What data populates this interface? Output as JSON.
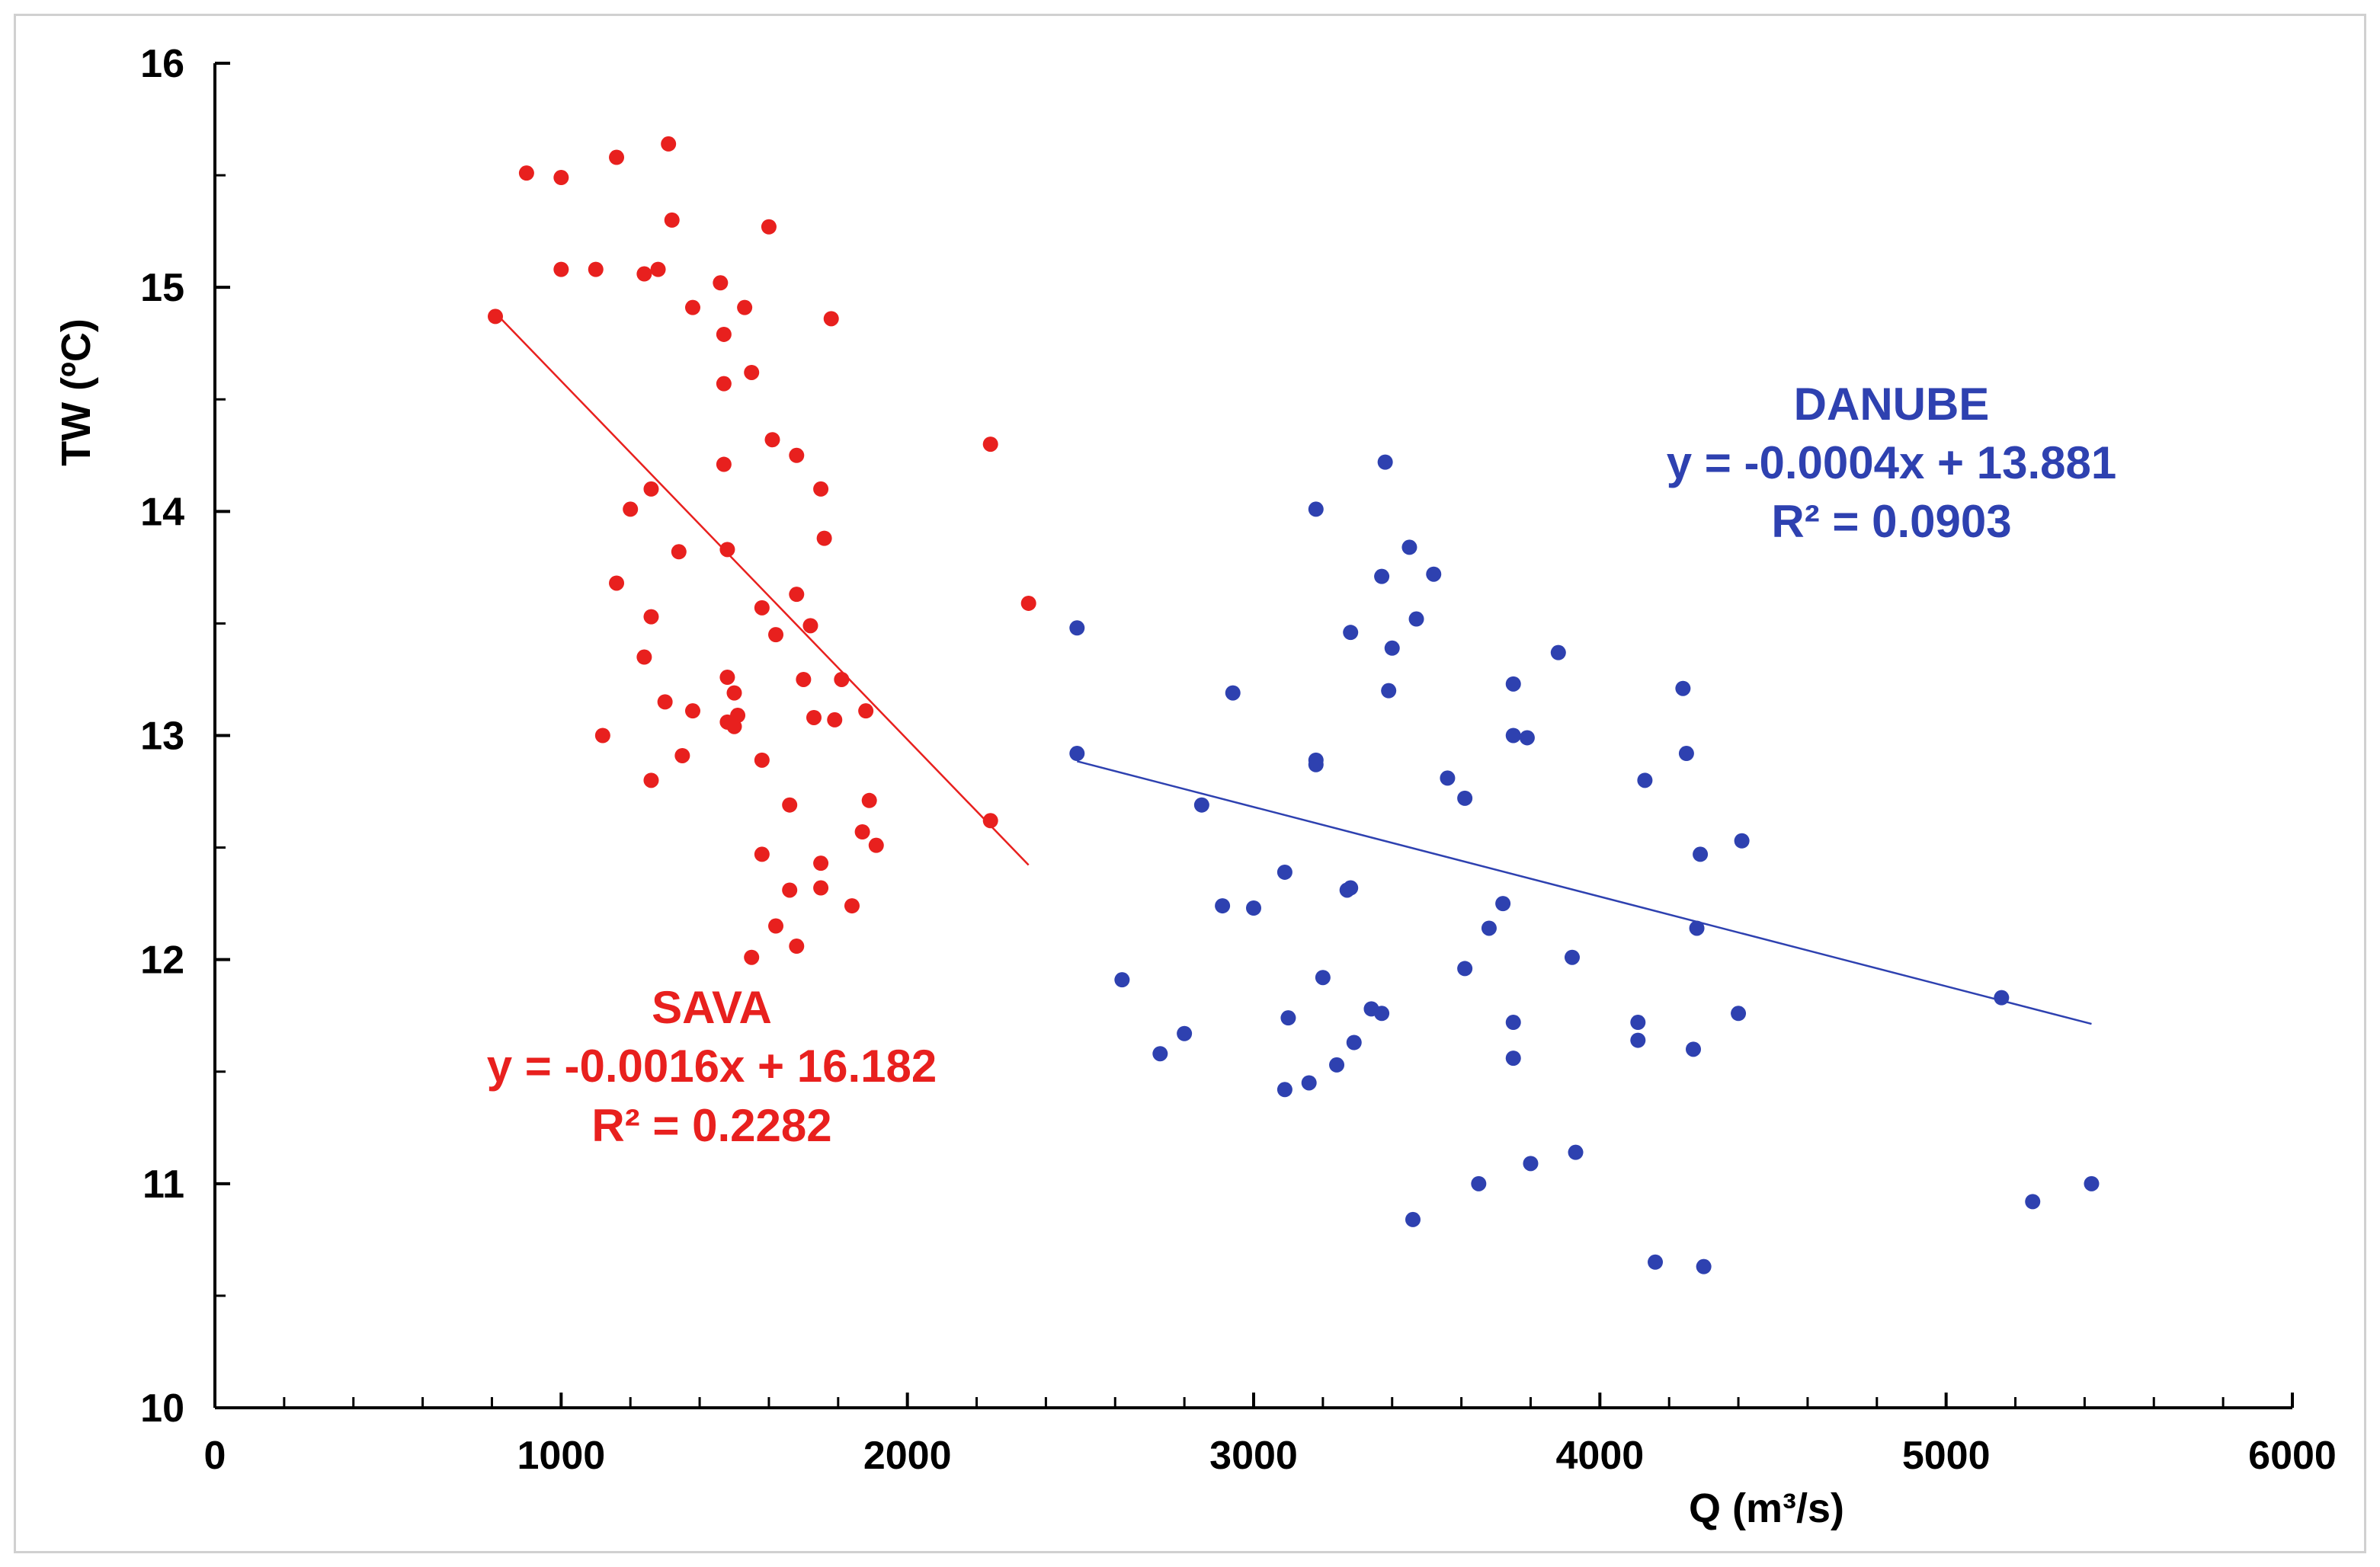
{
  "chart_data": {
    "type": "scatter",
    "xlabel": "Q (m³/s)",
    "ylabel": "TW (ºC)",
    "xlim": [
      0,
      6000
    ],
    "ylim": [
      10,
      16
    ],
    "x_major_ticks": [
      "0",
      "1000",
      "2000",
      "3000",
      "4000",
      "5000",
      "6000"
    ],
    "y_major_ticks": [
      "10",
      "11",
      "12",
      "13",
      "14",
      "15",
      "16"
    ],
    "grid": false,
    "series": [
      {
        "name": "SAVA",
        "color": "#e8201e",
        "annotation": {
          "name": "SAVA",
          "equation": "y = -0.0016x + 16.182",
          "r2": "R² = 0.2282"
        },
        "trendline": {
          "slope": -0.0016,
          "intercept": 16.182,
          "x_range": [
            810,
            2350
          ]
        },
        "points": [
          [
            810,
            14.87
          ],
          [
            900,
            15.51
          ],
          [
            1000,
            15.49
          ],
          [
            1000,
            15.08
          ],
          [
            1100,
            15.08
          ],
          [
            1160,
            15.58
          ],
          [
            1310,
            15.64
          ],
          [
            1320,
            15.3
          ],
          [
            1240,
            15.06
          ],
          [
            1280,
            15.08
          ],
          [
            1380,
            14.91
          ],
          [
            1460,
            15.02
          ],
          [
            1530,
            14.91
          ],
          [
            1600,
            15.27
          ],
          [
            1470,
            14.79
          ],
          [
            1550,
            14.62
          ],
          [
            1470,
            14.57
          ],
          [
            1780,
            14.86
          ],
          [
            1610,
            14.32
          ],
          [
            1680,
            14.25
          ],
          [
            2240,
            14.3
          ],
          [
            1470,
            14.21
          ],
          [
            1260,
            14.1
          ],
          [
            1750,
            14.1
          ],
          [
            1200,
            14.01
          ],
          [
            1340,
            13.82
          ],
          [
            1480,
            13.83
          ],
          [
            1760,
            13.88
          ],
          [
            1160,
            13.68
          ],
          [
            1680,
            13.63
          ],
          [
            1580,
            13.57
          ],
          [
            1260,
            13.53
          ],
          [
            2350,
            13.59
          ],
          [
            1620,
            13.45
          ],
          [
            1720,
            13.49
          ],
          [
            1240,
            13.35
          ],
          [
            1480,
            13.26
          ],
          [
            1700,
            13.25
          ],
          [
            1810,
            13.25
          ],
          [
            1500,
            13.19
          ],
          [
            1300,
            13.15
          ],
          [
            1380,
            13.11
          ],
          [
            1480,
            13.06
          ],
          [
            1510,
            13.09
          ],
          [
            1500,
            13.04
          ],
          [
            1730,
            13.08
          ],
          [
            1790,
            13.07
          ],
          [
            1880,
            13.11
          ],
          [
            1120,
            13.0
          ],
          [
            1350,
            12.91
          ],
          [
            1580,
            12.89
          ],
          [
            1260,
            12.8
          ],
          [
            1890,
            12.71
          ],
          [
            1660,
            12.69
          ],
          [
            1870,
            12.57
          ],
          [
            2240,
            12.62
          ],
          [
            1910,
            12.51
          ],
          [
            1580,
            12.47
          ],
          [
            1750,
            12.43
          ],
          [
            1660,
            12.31
          ],
          [
            1750,
            12.32
          ],
          [
            1840,
            12.24
          ],
          [
            1620,
            12.15
          ],
          [
            1680,
            12.06
          ],
          [
            1550,
            12.01
          ]
        ]
      },
      {
        "name": "DANUBE",
        "color": "#2e41b0",
        "annotation": {
          "name": "DANUBE",
          "equation": "y = -0.0004x + 13.881",
          "r2": "R² = 0.0903"
        },
        "trendline": {
          "slope": -0.0004,
          "intercept": 13.881,
          "x_range": [
            2490,
            5420
          ]
        },
        "points": [
          [
            3380,
            14.22
          ],
          [
            3180,
            14.01
          ],
          [
            3450,
            13.84
          ],
          [
            3520,
            13.72
          ],
          [
            3370,
            13.71
          ],
          [
            3470,
            13.52
          ],
          [
            2490,
            13.48
          ],
          [
            3280,
            13.46
          ],
          [
            3400,
            13.39
          ],
          [
            3880,
            13.37
          ],
          [
            3750,
            13.23
          ],
          [
            4240,
            13.21
          ],
          [
            2940,
            13.19
          ],
          [
            3390,
            13.2
          ],
          [
            3750,
            13.0
          ],
          [
            3790,
            12.99
          ],
          [
            2490,
            12.92
          ],
          [
            4250,
            12.92
          ],
          [
            3180,
            12.87
          ],
          [
            3180,
            12.89
          ],
          [
            3560,
            12.81
          ],
          [
            4130,
            12.8
          ],
          [
            3610,
            12.72
          ],
          [
            2850,
            12.69
          ],
          [
            4410,
            12.53
          ],
          [
            4290,
            12.47
          ],
          [
            3090,
            12.39
          ],
          [
            3270,
            12.31
          ],
          [
            3280,
            12.32
          ],
          [
            2910,
            12.24
          ],
          [
            3000,
            12.23
          ],
          [
            3720,
            12.25
          ],
          [
            3680,
            12.14
          ],
          [
            4280,
            12.14
          ],
          [
            3920,
            12.01
          ],
          [
            3610,
            11.96
          ],
          [
            3200,
            11.92
          ],
          [
            2620,
            11.91
          ],
          [
            5160,
            11.83
          ],
          [
            3340,
            11.78
          ],
          [
            3370,
            11.76
          ],
          [
            4400,
            11.76
          ],
          [
            3100,
            11.74
          ],
          [
            3750,
            11.72
          ],
          [
            4110,
            11.72
          ],
          [
            2800,
            11.67
          ],
          [
            3290,
            11.63
          ],
          [
            4110,
            11.64
          ],
          [
            2730,
            11.58
          ],
          [
            4270,
            11.6
          ],
          [
            3750,
            11.56
          ],
          [
            3240,
            11.53
          ],
          [
            3160,
            11.45
          ],
          [
            3090,
            11.42
          ],
          [
            3930,
            11.14
          ],
          [
            3800,
            11.09
          ],
          [
            3650,
            11.0
          ],
          [
            5420,
            11.0
          ],
          [
            5250,
            10.92
          ],
          [
            3460,
            10.84
          ],
          [
            4160,
            10.65
          ],
          [
            4300,
            10.63
          ]
        ]
      }
    ]
  }
}
